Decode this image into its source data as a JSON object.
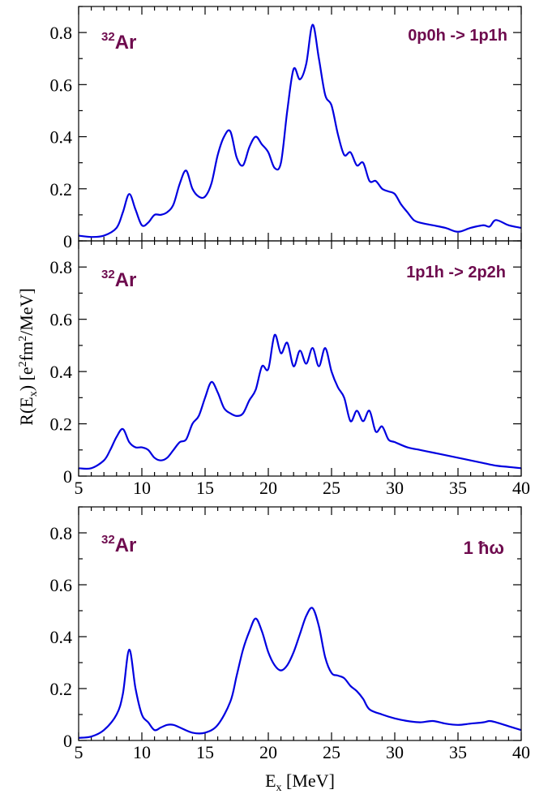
{
  "chart_data": [
    {
      "type": "line",
      "xlim": [
        5,
        40
      ],
      "ylim": [
        0,
        0.9
      ],
      "yticks": [
        0,
        0.2,
        0.4,
        0.6,
        0.8
      ],
      "ytick_labels": [
        "0",
        "0.2",
        "0.4",
        "0.6",
        "0.8"
      ],
      "nucleus": {
        "mass": "32",
        "symbol": "Ar"
      },
      "label": "0p0h -> 1p1h",
      "line_color": "#0000e0",
      "x": [
        5,
        6,
        7,
        8,
        8.5,
        9,
        9.5,
        10,
        10.5,
        11,
        11.5,
        12,
        12.5,
        13,
        13.5,
        14,
        14.5,
        15,
        15.5,
        16,
        16.5,
        17,
        17.5,
        18,
        18.5,
        19,
        19.5,
        20,
        20.5,
        21,
        21.5,
        22,
        22.5,
        23,
        23.5,
        24,
        24.5,
        25,
        25.5,
        26,
        26.5,
        27,
        27.5,
        28,
        28.5,
        29,
        29.5,
        30,
        30.5,
        31,
        31.5,
        32,
        33,
        34,
        35,
        36,
        37,
        37.5,
        38,
        39,
        40
      ],
      "y": [
        0.02,
        0.015,
        0.02,
        0.05,
        0.11,
        0.18,
        0.12,
        0.06,
        0.07,
        0.1,
        0.1,
        0.11,
        0.14,
        0.22,
        0.27,
        0.2,
        0.17,
        0.17,
        0.22,
        0.33,
        0.4,
        0.42,
        0.32,
        0.29,
        0.36,
        0.4,
        0.37,
        0.34,
        0.28,
        0.3,
        0.5,
        0.66,
        0.62,
        0.68,
        0.83,
        0.7,
        0.56,
        0.52,
        0.41,
        0.33,
        0.34,
        0.29,
        0.3,
        0.23,
        0.23,
        0.2,
        0.19,
        0.18,
        0.14,
        0.11,
        0.08,
        0.07,
        0.06,
        0.05,
        0.035,
        0.05,
        0.06,
        0.055,
        0.08,
        0.06,
        0.05
      ]
    },
    {
      "type": "line",
      "xlim": [
        5,
        40
      ],
      "ylim": [
        0,
        0.9
      ],
      "yticks": [
        0,
        0.2,
        0.4,
        0.6,
        0.8
      ],
      "ytick_labels": [
        "0",
        "0.2",
        "0.4",
        "0.6",
        "0.8"
      ],
      "xticks": [
        5,
        10,
        15,
        20,
        25,
        30,
        35,
        40
      ],
      "xtick_labels": [
        "5",
        "10",
        "15",
        "20",
        "25",
        "30",
        "35",
        "40"
      ],
      "nucleus": {
        "mass": "32",
        "symbol": "Ar"
      },
      "label": "1p1h -> 2p2h",
      "line_color": "#0000e0",
      "x": [
        5,
        6,
        7,
        7.5,
        8,
        8.5,
        9,
        9.5,
        10,
        10.5,
        11,
        11.5,
        12,
        12.5,
        13,
        13.5,
        14,
        14.5,
        15,
        15.5,
        16,
        16.5,
        17,
        17.5,
        18,
        18.5,
        19,
        19.5,
        20,
        20.5,
        21,
        21.5,
        22,
        22.5,
        23,
        23.5,
        24,
        24.5,
        25,
        25.5,
        26,
        26.5,
        27,
        27.5,
        28,
        28.5,
        29,
        29.5,
        30,
        31,
        32,
        33,
        34,
        35,
        36,
        37,
        38,
        39,
        40
      ],
      "y": [
        0.03,
        0.03,
        0.06,
        0.1,
        0.15,
        0.18,
        0.13,
        0.11,
        0.11,
        0.1,
        0.07,
        0.06,
        0.07,
        0.1,
        0.13,
        0.14,
        0.2,
        0.23,
        0.3,
        0.36,
        0.32,
        0.26,
        0.24,
        0.23,
        0.24,
        0.29,
        0.33,
        0.42,
        0.41,
        0.54,
        0.47,
        0.51,
        0.42,
        0.48,
        0.43,
        0.49,
        0.42,
        0.49,
        0.4,
        0.34,
        0.3,
        0.21,
        0.25,
        0.21,
        0.25,
        0.17,
        0.19,
        0.14,
        0.13,
        0.11,
        0.1,
        0.09,
        0.08,
        0.07,
        0.06,
        0.05,
        0.04,
        0.035,
        0.03
      ]
    },
    {
      "type": "line",
      "xlim": [
        5,
        40
      ],
      "ylim": [
        0,
        0.9
      ],
      "yticks": [
        0,
        0.2,
        0.4,
        0.6,
        0.8
      ],
      "ytick_labels": [
        "0",
        "0.2",
        "0.4",
        "0.6",
        "0.8"
      ],
      "xticks": [
        5,
        10,
        15,
        20,
        25,
        30,
        35,
        40
      ],
      "xtick_labels": [
        "5",
        "10",
        "15",
        "20",
        "25",
        "30",
        "35",
        "40"
      ],
      "nucleus": {
        "mass": "32",
        "symbol": "Ar"
      },
      "label": "1 ħω",
      "line_color": "#0000e0",
      "x": [
        5,
        6,
        7,
        8,
        8.5,
        9,
        9.5,
        10,
        10.5,
        11,
        11.5,
        12,
        12.5,
        13,
        14,
        15,
        16,
        17,
        17.5,
        18,
        18.5,
        19,
        19.5,
        20,
        20.5,
        21,
        21.5,
        22,
        22.5,
        23,
        23.5,
        24,
        24.5,
        25,
        25.5,
        26,
        26.5,
        27,
        27.5,
        28,
        29,
        30,
        31,
        32,
        33,
        34,
        35,
        36,
        37,
        37.5,
        38,
        39,
        40
      ],
      "y": [
        0.01,
        0.015,
        0.04,
        0.1,
        0.18,
        0.35,
        0.2,
        0.1,
        0.07,
        0.04,
        0.05,
        0.06,
        0.06,
        0.05,
        0.03,
        0.03,
        0.06,
        0.15,
        0.25,
        0.35,
        0.42,
        0.47,
        0.42,
        0.34,
        0.29,
        0.27,
        0.29,
        0.34,
        0.41,
        0.48,
        0.51,
        0.44,
        0.32,
        0.26,
        0.25,
        0.24,
        0.21,
        0.19,
        0.16,
        0.12,
        0.1,
        0.085,
        0.075,
        0.07,
        0.075,
        0.065,
        0.06,
        0.065,
        0.07,
        0.075,
        0.07,
        0.055,
        0.04
      ]
    }
  ],
  "y_axis_title": {
    "main": "R(E",
    "sub": "x",
    "mid": ") [e",
    "sup1": "2",
    "mid2": "fm",
    "sup2": "2",
    "end": "/MeV]"
  },
  "x_axis_title": {
    "main": "E",
    "sub": "x",
    "end": " [MeV]"
  },
  "colors": {
    "line": "#0000e0",
    "annotation": "#6e0b4e",
    "axis": "#000000"
  }
}
